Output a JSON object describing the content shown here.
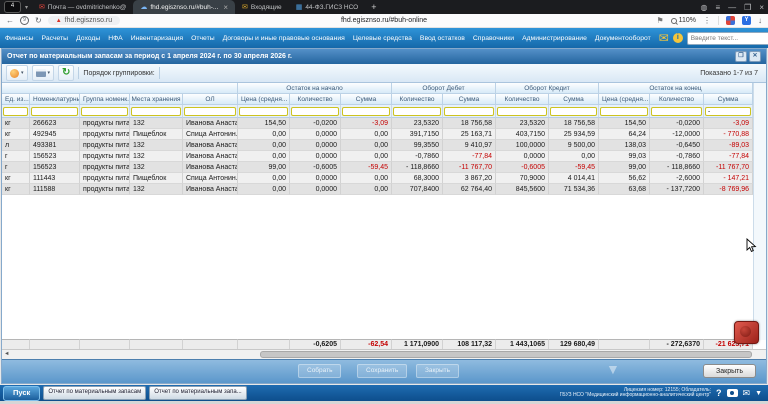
{
  "colors": {
    "accent_blue": "#1a72b8",
    "negative_red": "#c40000",
    "filter_border": "#cdc31f",
    "taskbar_blue": "#0d4e8c"
  },
  "browser": {
    "tab_group_badge": "4",
    "tabs": [
      {
        "label": "Почта — ovdmitrichenko@",
        "icon": "mail-icon",
        "active": false
      },
      {
        "label": "fhd.egisznso.ru/#buh-...",
        "icon": "cloud-icon",
        "active": true
      },
      {
        "label": "Входящие",
        "icon": "inbox-icon",
        "active": false
      },
      {
        "label": "44-ФЗ.ГИСЗ НСО",
        "icon": "app-grid-icon",
        "active": false
      }
    ],
    "new_tab": "+",
    "site": "fhd.egisznso.ru",
    "url": "fhd.egisznso.ru/#buh-online",
    "zoom_level": "110%"
  },
  "nav": {
    "items": [
      "Финансы",
      "Расчеты",
      "Доходы",
      "НФА",
      "Инвентаризация",
      "Отчеты",
      "Договоры и иные правовые основания",
      "Целевые средства",
      "Ввод остатков",
      "Справочники",
      "Администрирование",
      "Документооборот"
    ],
    "search_placeholder": "Введите текст..."
  },
  "report": {
    "title": "Отчет по материальным запасам за период с 1 апреля 2024 г. по 30 апреля 2026 г.",
    "grouping_label": "Порядок группировки:",
    "shown_label": "Показано 1-7 из 7",
    "groups": [
      "Остаток на начало",
      "Оборот Дебет",
      "Оборот Кредит",
      "Остаток на конец"
    ],
    "columns": [
      "Ед. из...",
      "Номенклатурны...",
      "Группа номенк...",
      "Места хранения",
      "ОЛ",
      "Цена (средня...",
      "Количество",
      "Сумма",
      "Количество",
      "Сумма",
      "Количество",
      "Сумма",
      "Цена (средня...",
      "Количество",
      "Сумма"
    ],
    "filters": [
      "",
      "",
      "",
      "",
      "",
      "",
      "",
      "",
      "",
      "",
      "",
      "",
      "",
      "",
      "-"
    ],
    "rows": [
      {
        "cells": [
          "кг",
          "266623",
          "продукты питан...",
          "132",
          "Иванова Анаста...",
          "154,50",
          "-0,0200",
          "-3,09",
          "23,5320",
          "18 756,58",
          "23,5320",
          "18 756,58",
          "154,50",
          "-0,0200",
          "-3,09"
        ],
        "red": [
          7,
          14
        ]
      },
      {
        "cells": [
          "кг",
          "492945",
          "продукты питан...",
          "Пищеблок",
          "Спица Антонин...",
          "0,00",
          "0,0000",
          "0,00",
          "391,7150",
          "25 163,71",
          "403,7150",
          "25 934,59",
          "64,24",
          "-12,0000",
          "- 770,88"
        ],
        "red": [
          14
        ]
      },
      {
        "cells": [
          "л",
          "493381",
          "продукты питан...",
          "132",
          "Иванова Анаста...",
          "0,00",
          "0,0000",
          "0,00",
          "99,3550",
          "9 410,97",
          "100,0000",
          "9 500,00",
          "138,03",
          "-0,6450",
          "-89,03"
        ],
        "red": [
          14
        ]
      },
      {
        "cells": [
          "г",
          "156523",
          "продукты питан...",
          "132",
          "Иванова Анаста...",
          "0,00",
          "0,0000",
          "0,00",
          "-0,7860",
          "-77,84",
          "0,0000",
          "0,00",
          "99,03",
          "-0,7860",
          "-77,84"
        ],
        "red": [
          9,
          14
        ]
      },
      {
        "cells": [
          "г",
          "156523",
          "продукты питан...",
          "132",
          "Иванова Анаста...",
          "99,00",
          "-0,6005",
          "-59,45",
          "- 118,8660",
          "-11 767,70",
          "-0,6005",
          "-59,45",
          "99,00",
          "- 118,8660",
          "-11 767,70"
        ],
        "red": [
          7,
          9,
          10,
          11,
          14
        ]
      },
      {
        "cells": [
          "кг",
          "111443",
          "продукты питан...",
          "Пищеблок",
          "Спица Антонин...",
          "0,00",
          "0,0000",
          "0,00",
          "68,3000",
          "3 867,20",
          "70,9000",
          "4 014,41",
          "56,62",
          "-2,6000",
          "- 147,21"
        ],
        "red": [
          14
        ]
      },
      {
        "cells": [
          "кг",
          "111588",
          "продукты питан...",
          "132",
          "Иванова Анаста...",
          "0,00",
          "0,0000",
          "0,00",
          "707,8400",
          "62 764,40",
          "845,5600",
          "71 534,36",
          "63,68",
          "- 137,7200",
          "-8 769,96"
        ],
        "red": [
          14
        ]
      }
    ],
    "totals": {
      "cells": [
        "",
        "",
        "",
        "",
        "",
        "",
        "-0,6205",
        "-62,54",
        "1 171,0900",
        "108 117,32",
        "1 443,1065",
        "129 680,49",
        "",
        "- 272,6370",
        "-21 625,71"
      ],
      "red": [
        7,
        14
      ]
    },
    "ghost_buttons": [
      "Собрать",
      "Сохранить",
      "Закрыть"
    ],
    "close_button": "Закрыть"
  },
  "taskbar": {
    "start": "Пуск",
    "windows": [
      "Отчет по материальным запасам",
      "Отчет по материальным запа..."
    ],
    "license_line1": "Лицензия номер: 12155; Обладатель:",
    "license_line2": "ГБУЗ НСО \"Медицинский информационно-аналитический центр\""
  }
}
